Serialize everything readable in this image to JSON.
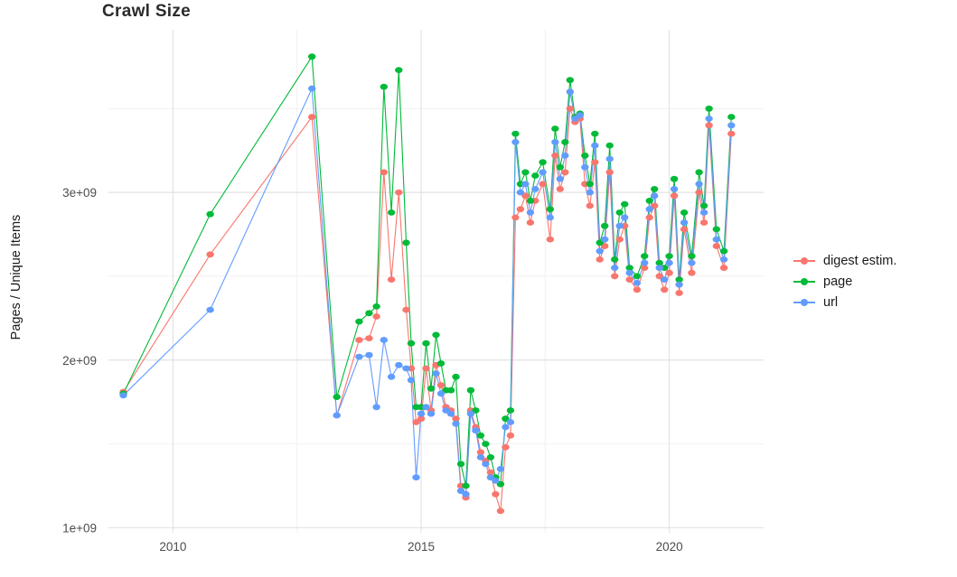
{
  "page": {
    "title": "Crawl Size"
  },
  "chart_data": {
    "type": "line",
    "title": "Crawl Size",
    "xlabel": "",
    "ylabel": "Pages / Unique Items",
    "legend_position": "right",
    "grid": true,
    "grid_major_color": "#e3e3e3",
    "grid_minor_color": "#f1f1f1",
    "axis_text_color": "#4d4d4d",
    "xlim": [
      2008.7,
      2021.9
    ],
    "ylim": [
      970000000.0,
      3970000000.0
    ],
    "x_ticks": [
      {
        "value": 2010,
        "label": "2010"
      },
      {
        "value": 2015,
        "label": "2015"
      },
      {
        "value": 2020,
        "label": "2020"
      }
    ],
    "y_ticks": [
      {
        "value": 1000000000.0,
        "label": "1e+09"
      },
      {
        "value": 2000000000.0,
        "label": "2e+09"
      },
      {
        "value": 3000000000.0,
        "label": "3e+09"
      }
    ],
    "x_minor": [
      2012.5,
      2017.5
    ],
    "y_minor": [
      1500000000.0,
      2500000000.0,
      3500000000.0
    ],
    "x": [
      2009.0,
      2010.75,
      2012.8,
      2013.3,
      2013.75,
      2013.95,
      2014.1,
      2014.25,
      2014.4,
      2014.55,
      2014.7,
      2014.8,
      2014.9,
      2015.0,
      2015.1,
      2015.2,
      2015.3,
      2015.4,
      2015.5,
      2015.6,
      2015.7,
      2015.8,
      2015.9,
      2016.0,
      2016.1,
      2016.2,
      2016.3,
      2016.4,
      2016.5,
      2016.6,
      2016.7,
      2016.8,
      2016.9,
      2017.0,
      2017.1,
      2017.2,
      2017.3,
      2017.45,
      2017.6,
      2017.7,
      2017.8,
      2017.9,
      2018.0,
      2018.1,
      2018.2,
      2018.3,
      2018.4,
      2018.5,
      2018.6,
      2018.7,
      2018.8,
      2018.9,
      2019.0,
      2019.1,
      2019.2,
      2019.35,
      2019.5,
      2019.6,
      2019.7,
      2019.8,
      2019.9,
      2020.0,
      2020.1,
      2020.2,
      2020.3,
      2020.45,
      2020.6,
      2020.7,
      2020.8,
      2020.95,
      2021.1,
      2021.25
    ],
    "series": [
      {
        "name": "digest estim.",
        "color": "#F8766D",
        "values": [
          1810000000.0,
          2630000000.0,
          3450000000.0,
          1670000000.0,
          2120000000.0,
          2130000000.0,
          2260000000.0,
          3120000000.0,
          2480000000.0,
          3000000000.0,
          2300000000.0,
          1950000000.0,
          1630000000.0,
          1650000000.0,
          1950000000.0,
          1700000000.0,
          1970000000.0,
          1850000000.0,
          1720000000.0,
          1700000000.0,
          1650000000.0,
          1250000000.0,
          1180000000.0,
          1700000000.0,
          1600000000.0,
          1450000000.0,
          1400000000.0,
          1330000000.0,
          1200000000.0,
          1100000000.0,
          1480000000.0,
          1550000000.0,
          2850000000.0,
          2900000000.0,
          2980000000.0,
          2820000000.0,
          2950000000.0,
          3050000000.0,
          2720000000.0,
          3220000000.0,
          3020000000.0,
          3120000000.0,
          3500000000.0,
          3420000000.0,
          3440000000.0,
          3050000000.0,
          2920000000.0,
          3180000000.0,
          2600000000.0,
          2680000000.0,
          3120000000.0,
          2500000000.0,
          2720000000.0,
          2800000000.0,
          2480000000.0,
          2420000000.0,
          2550000000.0,
          2850000000.0,
          2920000000.0,
          2500000000.0,
          2420000000.0,
          2520000000.0,
          2980000000.0,
          2400000000.0,
          2780000000.0,
          2520000000.0,
          3000000000.0,
          2820000000.0,
          3400000000.0,
          2680000000.0,
          2550000000.0,
          3350000000.0
        ]
      },
      {
        "name": "page",
        "color": "#00BA38",
        "values": [
          1800000000.0,
          2870000000.0,
          3810000000.0,
          1780000000.0,
          2230000000.0,
          2280000000.0,
          2320000000.0,
          3630000000.0,
          2880000000.0,
          3730000000.0,
          2700000000.0,
          2100000000.0,
          1720000000.0,
          1720000000.0,
          2100000000.0,
          1830000000.0,
          2150000000.0,
          1980000000.0,
          1820000000.0,
          1820000000.0,
          1900000000.0,
          1380000000.0,
          1250000000.0,
          1820000000.0,
          1700000000.0,
          1550000000.0,
          1500000000.0,
          1420000000.0,
          1300000000.0,
          1260000000.0,
          1650000000.0,
          1700000000.0,
          3350000000.0,
          3050000000.0,
          3120000000.0,
          2950000000.0,
          3100000000.0,
          3180000000.0,
          2900000000.0,
          3380000000.0,
          3150000000.0,
          3300000000.0,
          3670000000.0,
          3450000000.0,
          3470000000.0,
          3220000000.0,
          3050000000.0,
          3350000000.0,
          2700000000.0,
          2800000000.0,
          3280000000.0,
          2600000000.0,
          2880000000.0,
          2930000000.0,
          2550000000.0,
          2500000000.0,
          2620000000.0,
          2950000000.0,
          3020000000.0,
          2580000000.0,
          2550000000.0,
          2620000000.0,
          3080000000.0,
          2480000000.0,
          2880000000.0,
          2620000000.0,
          3120000000.0,
          2920000000.0,
          3500000000.0,
          2780000000.0,
          2650000000.0,
          3450000000.0
        ]
      },
      {
        "name": "url",
        "color": "#619CFF",
        "values": [
          1790000000.0,
          2300000000.0,
          3620000000.0,
          1670000000.0,
          2020000000.0,
          2030000000.0,
          1720000000.0,
          2120000000.0,
          1900000000.0,
          1970000000.0,
          1950000000.0,
          1880000000.0,
          1300000000.0,
          1680000000.0,
          1720000000.0,
          1680000000.0,
          1920000000.0,
          1800000000.0,
          1700000000.0,
          1680000000.0,
          1620000000.0,
          1220000000.0,
          1200000000.0,
          1680000000.0,
          1580000000.0,
          1420000000.0,
          1380000000.0,
          1300000000.0,
          1280000000.0,
          1350000000.0,
          1600000000.0,
          1630000000.0,
          3300000000.0,
          3000000000.0,
          3050000000.0,
          2880000000.0,
          3020000000.0,
          3120000000.0,
          2850000000.0,
          3300000000.0,
          3080000000.0,
          3220000000.0,
          3600000000.0,
          3440000000.0,
          3460000000.0,
          3150000000.0,
          3000000000.0,
          3280000000.0,
          2650000000.0,
          2720000000.0,
          3200000000.0,
          2550000000.0,
          2800000000.0,
          2850000000.0,
          2520000000.0,
          2460000000.0,
          2580000000.0,
          2900000000.0,
          2980000000.0,
          2550000000.0,
          2480000000.0,
          2580000000.0,
          3020000000.0,
          2450000000.0,
          2820000000.0,
          2580000000.0,
          3050000000.0,
          2880000000.0,
          3440000000.0,
          2720000000.0,
          2600000000.0,
          3400000000.0
        ]
      }
    ]
  }
}
